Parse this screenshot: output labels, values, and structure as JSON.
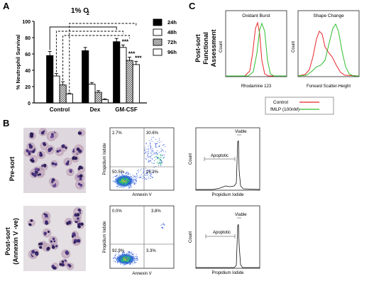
{
  "panels": {
    "a": "A",
    "b": "B",
    "c": "C"
  },
  "panel_a": {
    "title": "1% O",
    "title_sub": "2",
    "significance": "***"
  },
  "panel_b": {
    "row_labels": [
      "Pre-sort",
      "Post-sort",
      "(Annexin V -ve)"
    ],
    "flow_xlabel": "Annexin V",
    "flow_ylabel": "Propidium Iodide",
    "pre_quadrants": [
      "2.7%",
      "30.6%",
      "50.5%",
      "16.2%"
    ],
    "post_quadrants": [
      "0.0%",
      "3.8%",
      "92.9%",
      "3.3%"
    ],
    "hist_xlabel": "Propidium Iodide",
    "hist_ylabel": "Count",
    "apoptotic": "Apoptotic",
    "viable": "Viable"
  },
  "panel_c": {
    "side_label_1": "Post-sort",
    "side_label_2": "Functional",
    "side_label_3": "Assessment",
    "plot1_title": "Oxidant Burst",
    "plot1_xlabel": "Rhodamine 123",
    "plot2_title": "Shape Change",
    "plot2_xlabel": "Forward Scatter-Height",
    "ylabel": "Count",
    "legend": [
      {
        "label": "Control",
        "color": "#e8262a"
      },
      {
        "label": "fMLP (100nM)",
        "color": "#2ebd2e"
      }
    ]
  },
  "chart_data": [
    {
      "type": "bar",
      "title": "1% O2",
      "ylabel": "% Neutrophil Survival",
      "ylim": [
        0,
        100
      ],
      "yticks": [
        "0",
        "20",
        "40",
        "60",
        "80",
        "100"
      ],
      "categories": [
        "Control",
        "Dex",
        "GM-CSF"
      ],
      "series": [
        {
          "name": "24h",
          "values": [
            58,
            64,
            75
          ],
          "errors": [
            5,
            4,
            4
          ]
        },
        {
          "name": "48h",
          "values": [
            33,
            23,
            68
          ],
          "errors": [
            3,
            2,
            3
          ]
        },
        {
          "name": "72h",
          "values": [
            22,
            13,
            52
          ],
          "errors": [
            4,
            2,
            4
          ]
        },
        {
          "name": "96h",
          "values": [
            11,
            4,
            47
          ],
          "errors": [
            1,
            1,
            4
          ]
        }
      ]
    }
  ]
}
